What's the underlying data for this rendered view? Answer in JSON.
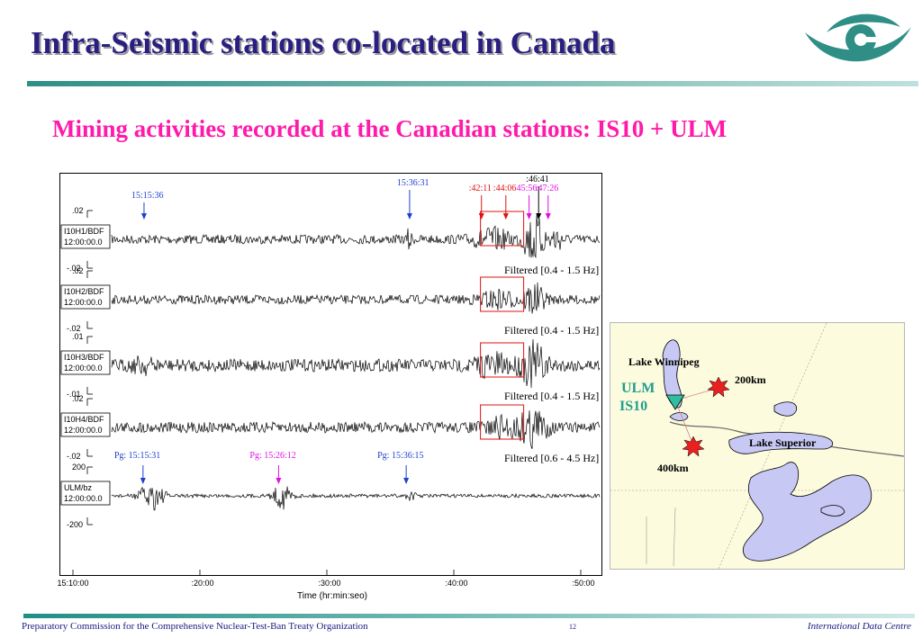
{
  "title": "Infra-Seismic stations co-located in Canada",
  "subtitle": "Mining activities recorded at the Canadian stations: IS10 + ULM",
  "logo": {
    "icon": "ctbto-eye-logo",
    "color": "#2f8f86"
  },
  "chart_data": {
    "type": "line",
    "title": "",
    "xlabel": "Time (hr:min:seo)",
    "xtick_labels": [
      "15:10:00",
      ":20:00",
      ":30:00",
      ":40:00",
      ":50:00"
    ],
    "channels": [
      {
        "name": "I10H1/BDF",
        "time": "12:00:00.0",
        "ymax": ".02",
        "ymin": "-.02",
        "filter": "Filtered [0.4 - 1.5 Hz]"
      },
      {
        "name": "I10H2/BDF",
        "time": "12:00:00.0",
        "ymax": ".02",
        "ymin": "-.02",
        "filter": "Filtered [0.4 - 1.5 Hz]"
      },
      {
        "name": "I10H3/BDF",
        "time": "12:00:00.0",
        "ymax": ".01",
        "ymin": "-.01",
        "filter": "Filtered [0.4 - 1.5 Hz]"
      },
      {
        "name": "I10H4/BDF",
        "time": "12:00:00.0",
        "ymax": ".02",
        "ymin": "-.02",
        "filter": "Filtered [0.6 - 4.5 Hz]"
      },
      {
        "name": "ULM/bz",
        "time": "12:00:00.0",
        "ymax": "200",
        "ymin": "-200",
        "filter": ""
      }
    ],
    "arrivals_infrasound": [
      {
        "label": "15:15:36",
        "minute": 5.6,
        "color": "#1f3fd0"
      },
      {
        "label": "15:36:31",
        "minute": 26.52,
        "color": "#1f3fd0"
      },
      {
        "label": ":42:11",
        "minute": 32.18,
        "color": "#e01010"
      },
      {
        "label": ":44:06",
        "minute": 34.1,
        "color": "#e01010"
      },
      {
        "label": "45:56",
        "minute": 35.93,
        "color": "#e010e0"
      },
      {
        "label": ":46:41",
        "minute": 36.68,
        "color": "#000000"
      },
      {
        "label": ":47:26",
        "minute": 37.43,
        "color": "#e010e0"
      }
    ],
    "arrivals_seismic": [
      {
        "label": "Pg:  15:15:31",
        "minute": 5.52,
        "color": "#1f3fd0"
      },
      {
        "label": "Pg:  15:26:12",
        "minute": 16.2,
        "color": "#e010e0"
      },
      {
        "label": "Pg:  15:36:15",
        "minute": 26.25,
        "color": "#1f3fd0"
      }
    ]
  },
  "map": {
    "labels": {
      "lake_winnipeg": "Lake Winnipeg",
      "ulm": "ULM",
      "is10": "IS10",
      "d200": "200km",
      "lake_superior": "Lake Superior",
      "d400": "400km"
    },
    "colors": {
      "water": "#c8c8f4",
      "background": "#fcfbdd",
      "station": "#2fbf9f",
      "event": "#e82020"
    }
  },
  "footer": {
    "left": "Preparatory Commission for the Comprehensive Nuclear-Test-Ban Treaty Organization",
    "page": "12",
    "right": "International Data Centre"
  }
}
